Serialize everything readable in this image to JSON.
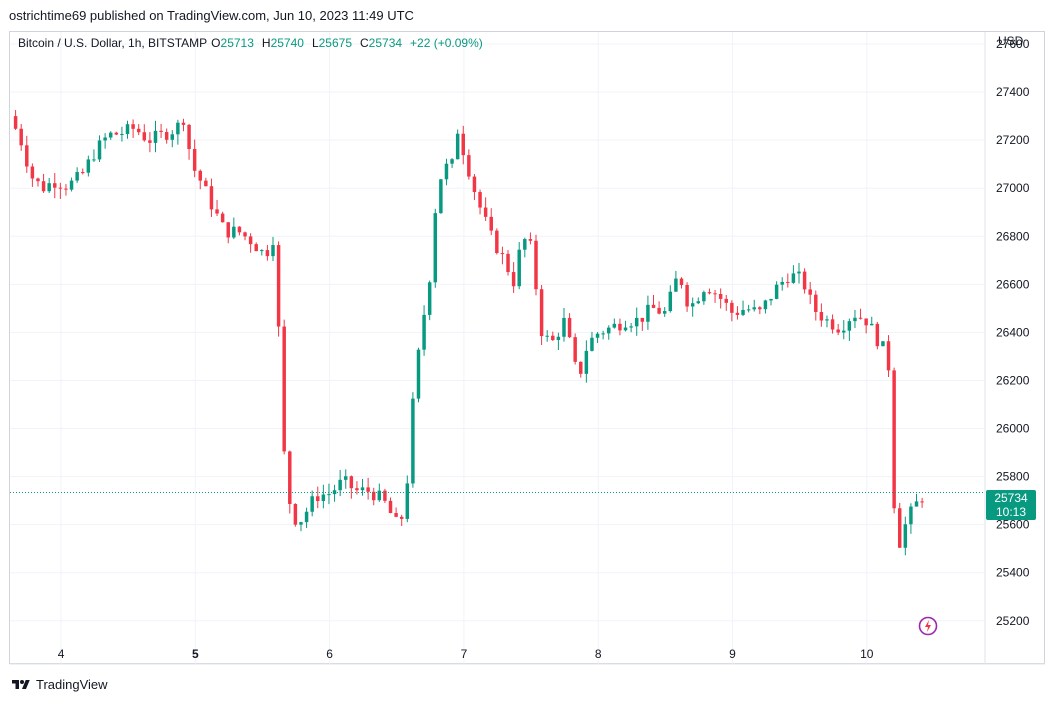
{
  "header": {
    "attribution": "ostrichtime69 published on TradingView.com, Jun 10, 2023 11:49 UTC"
  },
  "legend": {
    "symbol": "Bitcoin / U.S. Dollar, 1h, BITSTAMP",
    "open_label": "O",
    "open": "25713",
    "high_label": "H",
    "high": "25740",
    "low_label": "L",
    "low": "25675",
    "close_label": "C",
    "close": "25734",
    "change": "+22 (+0.09%)"
  },
  "currency": "USD",
  "price_tag": {
    "price": "25734",
    "countdown": "10:13"
  },
  "footer": {
    "brand": "TradingView"
  },
  "icons": {
    "logo": "tradingview-logo-icon",
    "bolt": "lightning-bolt-icon"
  },
  "colors": {
    "up": "#089981",
    "down": "#f23645",
    "grid": "#f0f3fa",
    "last_price_line": "#089981"
  },
  "chart_data": {
    "type": "candlestick",
    "title": "Bitcoin / U.S. Dollar, 1h, BITSTAMP",
    "y_axis": {
      "ticks": [
        25200,
        25400,
        25600,
        25800,
        26000,
        26200,
        26400,
        26600,
        26800,
        27000,
        27200,
        27400,
        27600
      ],
      "tick_labels": [
        "25200",
        "25400",
        "25600",
        "25800",
        "26000",
        "26200",
        "26400",
        "26600",
        "26800",
        "27000",
        "27200",
        "27400",
        "27600"
      ],
      "ylim": [
        25120,
        27650
      ],
      "position": "right"
    },
    "x_axis": {
      "ticks": [
        {
          "label": "4",
          "day": 4
        },
        {
          "label": "5",
          "day": 5,
          "bold": true
        },
        {
          "label": "6",
          "day": 6
        },
        {
          "label": "7",
          "day": 7
        },
        {
          "label": "8",
          "day": 8
        },
        {
          "label": "9",
          "day": 9
        },
        {
          "label": "10",
          "day": 10
        }
      ],
      "range_days": [
        3.62,
        10.88
      ]
    },
    "last_price": 25734,
    "grid": true,
    "anchors": [
      [
        3.62,
        27300
      ],
      [
        3.7,
        27200
      ],
      [
        3.78,
        27050
      ],
      [
        3.86,
        27000
      ],
      [
        3.95,
        27030
      ],
      [
        4.05,
        27010
      ],
      [
        4.15,
        27050
      ],
      [
        4.25,
        27150
      ],
      [
        4.35,
        27220
      ],
      [
        4.45,
        27230
      ],
      [
        4.55,
        27250
      ],
      [
        4.65,
        27200
      ],
      [
        4.75,
        27220
      ],
      [
        4.86,
        27250
      ],
      [
        4.92,
        27300
      ],
      [
        4.97,
        27100
      ],
      [
        5.05,
        27020
      ],
      [
        5.13,
        26920
      ],
      [
        5.22,
        26820
      ],
      [
        5.32,
        26820
      ],
      [
        5.42,
        26780
      ],
      [
        5.52,
        26720
      ],
      [
        5.6,
        26820
      ],
      [
        5.64,
        26000
      ],
      [
        5.7,
        25700
      ],
      [
        5.76,
        25600
      ],
      [
        5.82,
        25650
      ],
      [
        5.9,
        25720
      ],
      [
        6.0,
        25730
      ],
      [
        6.1,
        25780
      ],
      [
        6.2,
        25740
      ],
      [
        6.3,
        25740
      ],
      [
        6.4,
        25700
      ],
      [
        6.5,
        25600
      ],
      [
        6.56,
        25650
      ],
      [
        6.62,
        26100
      ],
      [
        6.68,
        26400
      ],
      [
        6.74,
        26600
      ],
      [
        6.8,
        27000
      ],
      [
        6.86,
        27100
      ],
      [
        6.9,
        27050
      ],
      [
        6.95,
        27250
      ],
      [
        7.0,
        27150
      ],
      [
        7.1,
        26950
      ],
      [
        7.2,
        26800
      ],
      [
        7.3,
        26700
      ],
      [
        7.38,
        26600
      ],
      [
        7.43,
        26800
      ],
      [
        7.5,
        26750
      ],
      [
        7.58,
        26400
      ],
      [
        7.65,
        26350
      ],
      [
        7.75,
        26450
      ],
      [
        7.85,
        26200
      ],
      [
        7.92,
        26350
      ],
      [
        8.0,
        26400
      ],
      [
        8.1,
        26420
      ],
      [
        8.2,
        26450
      ],
      [
        8.3,
        26450
      ],
      [
        8.4,
        26500
      ],
      [
        8.5,
        26480
      ],
      [
        8.6,
        26650
      ],
      [
        8.68,
        26500
      ],
      [
        8.8,
        26600
      ],
      [
        8.9,
        26550
      ],
      [
        9.0,
        26480
      ],
      [
        9.1,
        26500
      ],
      [
        9.2,
        26480
      ],
      [
        9.32,
        26580
      ],
      [
        9.42,
        26640
      ],
      [
        9.52,
        26620
      ],
      [
        9.6,
        26500
      ],
      [
        9.7,
        26450
      ],
      [
        9.8,
        26420
      ],
      [
        9.9,
        26480
      ],
      [
        10.0,
        26450
      ],
      [
        10.1,
        26350
      ],
      [
        10.16,
        26300
      ],
      [
        10.18,
        25800
      ],
      [
        10.24,
        25520
      ],
      [
        10.3,
        25620
      ],
      [
        10.36,
        25680
      ],
      [
        10.44,
        25734
      ]
    ]
  }
}
